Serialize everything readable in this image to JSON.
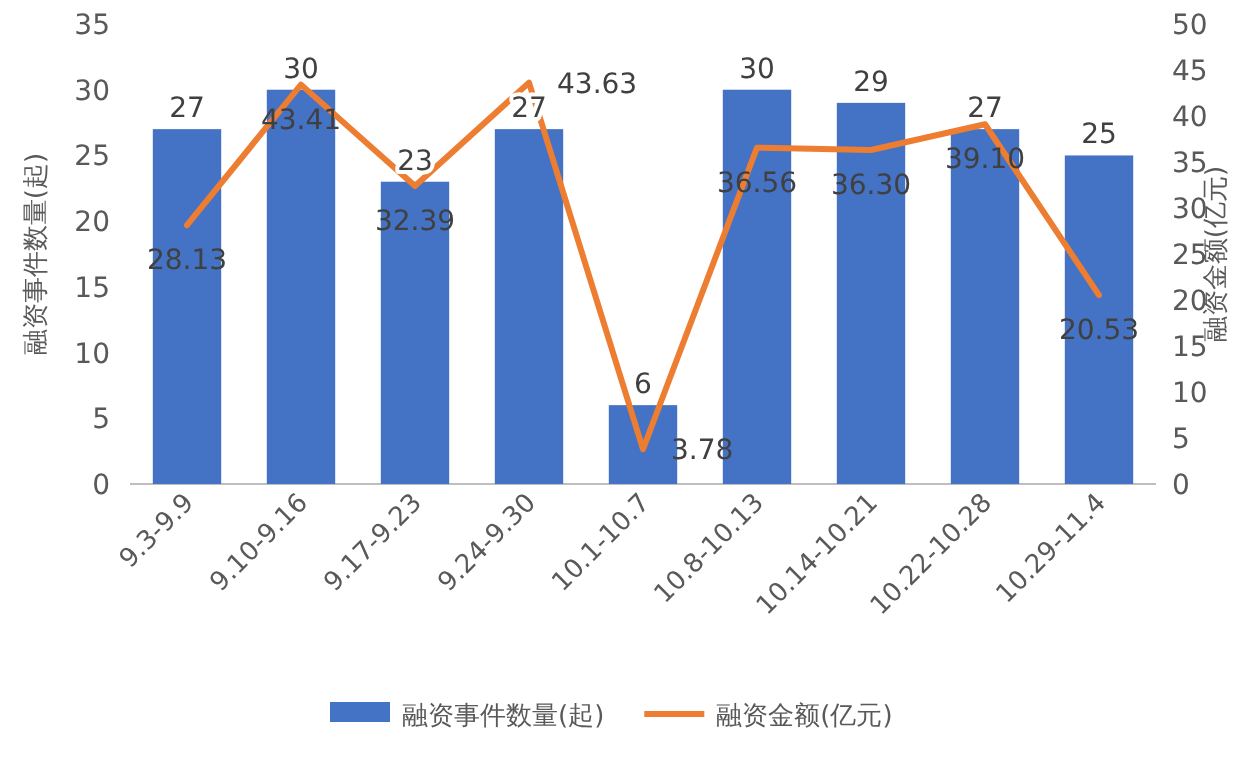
{
  "chart_data": {
    "type": "bar",
    "ylabel": "融资事件数量(起)",
    "y2label": "融资金额(亿元)",
    "categories": [
      "9.3-9.9",
      "9.10-9.16",
      "9.17-9.23",
      "9.24-9.30",
      "10.1-10.7",
      "10.8-10.13",
      "10.14-10.21",
      "10.22-10.28",
      "10.29-11.4"
    ],
    "series": [
      {
        "name": "融资事件数量(起)",
        "color": "#4472c4",
        "values": [
          27,
          30,
          23,
          27,
          6,
          30,
          29,
          27,
          25
        ]
      },
      {
        "name": "融资金额(亿元)",
        "type": "line",
        "axis": "y2",
        "color": "#ed7d31",
        "marker": "none",
        "values": [
          28.13,
          43.41,
          32.39,
          43.63,
          3.78,
          36.56,
          36.3,
          39.1,
          20.53
        ],
        "value_labels": [
          "28.13",
          "43.41",
          "32.39",
          "43.63",
          "3.78",
          "36.56",
          "36.30",
          "39.10",
          "20.53"
        ]
      }
    ],
    "ylim": [
      0,
      35
    ],
    "yticks": [
      0,
      5,
      10,
      15,
      20,
      25,
      30,
      35
    ],
    "y2lim": [
      0,
      50
    ],
    "y2ticks": [
      0,
      5,
      10,
      15,
      20,
      25,
      30,
      35,
      40,
      45,
      50
    ],
    "data_labels": true,
    "legend": "bottom",
    "grid": false
  }
}
